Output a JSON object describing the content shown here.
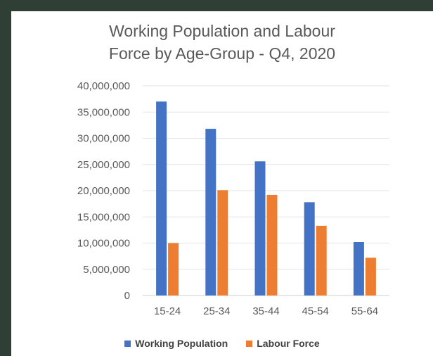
{
  "chart_data": {
    "type": "bar",
    "title_lines": [
      "Working Population and Labour",
      "Force by Age-Group - Q4, 2020"
    ],
    "categories": [
      "15-24",
      "25-34",
      "35-44",
      "45-54",
      "55-64"
    ],
    "series": [
      {
        "name": "Working Population",
        "color": "#4472C4",
        "values": [
          37000000,
          31800000,
          25600000,
          17800000,
          10200000
        ]
      },
      {
        "name": "Labour Force",
        "color": "#ED7D31",
        "values": [
          10000000,
          20100000,
          19200000,
          13300000,
          7200000
        ]
      }
    ],
    "ylim": [
      0,
      40000000
    ],
    "yticks": [
      "0",
      "5,000,000",
      "10,000,000",
      "15,000,000",
      "20,000,000",
      "25,000,000",
      "30,000,000",
      "35,000,000",
      "40,000,000"
    ],
    "ytick_values": [
      0,
      5000000,
      10000000,
      15000000,
      20000000,
      25000000,
      30000000,
      35000000,
      40000000
    ],
    "grid": true,
    "legend_position": "bottom"
  }
}
